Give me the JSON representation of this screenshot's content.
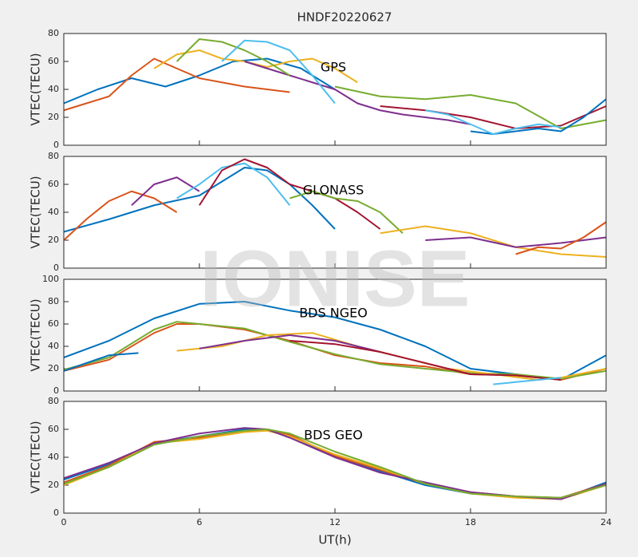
{
  "title": "HNDF20220627",
  "watermark": "IONISE",
  "xlabel": "UT(h)",
  "chart_data": [
    {
      "type": "line",
      "annotation": "GPS",
      "ylabel": "VTEC(TECU)",
      "xlim": [
        0,
        24
      ],
      "xticks": [
        0,
        6,
        12,
        18,
        24
      ],
      "xtick_labels": false,
      "ylim": [
        0,
        80
      ],
      "yticks": [
        0,
        20,
        40,
        60,
        80
      ],
      "series": [
        {
          "color": "#0072BD",
          "x": [
            0,
            1.5,
            3,
            4.5,
            6,
            7.5,
            9,
            10.5,
            12
          ],
          "values": [
            30,
            40,
            48,
            42,
            50,
            60,
            62,
            55,
            40
          ]
        },
        {
          "color": "#D95319",
          "x": [
            0,
            1,
            2,
            3,
            4,
            5,
            6,
            8,
            10
          ],
          "values": [
            25,
            30,
            35,
            50,
            62,
            55,
            48,
            42,
            38
          ]
        },
        {
          "color": "#EDB120",
          "x": [
            4,
            5,
            6,
            7,
            8,
            9,
            10,
            11,
            12,
            13
          ],
          "values": [
            55,
            65,
            68,
            62,
            60,
            56,
            60,
            62,
            55,
            45
          ]
        },
        {
          "color": "#7E2F8E",
          "x": [
            8,
            9,
            10,
            11,
            12,
            13,
            14,
            15,
            16,
            17,
            18
          ],
          "values": [
            60,
            55,
            50,
            45,
            40,
            30,
            25,
            22,
            20,
            18,
            15
          ]
        },
        {
          "color": "#77AC30",
          "x": [
            5,
            6,
            7,
            8,
            9,
            10
          ],
          "values": [
            60,
            76,
            74,
            68,
            60,
            50
          ]
        },
        {
          "color": "#4DBEEE",
          "x": [
            7,
            8,
            9,
            10,
            11,
            12
          ],
          "values": [
            60,
            75,
            74,
            68,
            50,
            30
          ]
        },
        {
          "color": "#A2142F",
          "x": [
            14,
            16,
            18,
            20,
            22,
            24
          ],
          "values": [
            28,
            25,
            20,
            12,
            14,
            28
          ]
        },
        {
          "color": "#77AC30",
          "x": [
            12,
            14,
            16,
            18,
            20,
            22,
            24
          ],
          "values": [
            42,
            35,
            33,
            36,
            30,
            12,
            18
          ]
        },
        {
          "color": "#0072BD",
          "x": [
            18,
            19,
            20,
            21,
            22,
            23,
            24
          ],
          "values": [
            10,
            8,
            10,
            12,
            10,
            20,
            33
          ]
        },
        {
          "color": "#4DBEEE",
          "x": [
            16,
            17,
            18,
            19,
            20,
            21,
            22
          ],
          "values": [
            25,
            22,
            15,
            8,
            12,
            15,
            13
          ]
        }
      ]
    },
    {
      "type": "line",
      "annotation": "GLONASS",
      "ylabel": "VTEC(TECU)",
      "xlim": [
        0,
        24
      ],
      "xticks": [
        0,
        6,
        12,
        18,
        24
      ],
      "xtick_labels": false,
      "ylim": [
        0,
        80
      ],
      "yticks": [
        0,
        20,
        40,
        60,
        80
      ],
      "series": [
        {
          "color": "#0072BD",
          "x": [
            0,
            2,
            4,
            6,
            7,
            8,
            9,
            10,
            11,
            12
          ],
          "values": [
            26,
            35,
            45,
            52,
            62,
            72,
            70,
            60,
            45,
            28
          ]
        },
        {
          "color": "#D95319",
          "x": [
            0,
            1,
            2,
            3,
            4,
            5
          ],
          "values": [
            20,
            35,
            48,
            55,
            50,
            40
          ]
        },
        {
          "color": "#7E2F8E",
          "x": [
            3,
            4,
            5,
            6
          ],
          "values": [
            45,
            60,
            65,
            55
          ]
        },
        {
          "color": "#4DBEEE",
          "x": [
            5,
            6,
            7,
            8,
            9,
            10
          ],
          "values": [
            50,
            60,
            72,
            75,
            65,
            45
          ]
        },
        {
          "color": "#A2142F",
          "x": [
            6,
            7,
            8,
            9,
            10,
            11,
            12,
            13,
            14
          ],
          "values": [
            45,
            70,
            78,
            72,
            60,
            55,
            50,
            40,
            28
          ]
        },
        {
          "color": "#77AC30",
          "x": [
            10,
            11,
            12,
            13,
            14,
            15
          ],
          "values": [
            50,
            55,
            50,
            48,
            40,
            25
          ]
        },
        {
          "color": "#EDB120",
          "x": [
            14,
            16,
            18,
            20,
            22,
            24
          ],
          "values": [
            25,
            30,
            25,
            15,
            10,
            8
          ]
        },
        {
          "color": "#7E2F8E",
          "x": [
            16,
            18,
            20,
            22,
            24
          ],
          "values": [
            20,
            22,
            15,
            18,
            22
          ]
        },
        {
          "color": "#D95319",
          "x": [
            20,
            21,
            22,
            23,
            24
          ],
          "values": [
            10,
            15,
            14,
            22,
            33
          ]
        }
      ]
    },
    {
      "type": "line",
      "annotation": "BDS NGEO",
      "ylabel": "VTEC(TECU)",
      "xlim": [
        0,
        24
      ],
      "xticks": [
        0,
        6,
        12,
        18,
        24
      ],
      "xtick_labels": false,
      "ylim": [
        0,
        100
      ],
      "yticks": [
        0,
        20,
        40,
        60,
        80,
        100
      ],
      "series": [
        {
          "color": "#0072BD",
          "x": [
            0,
            2,
            4,
            6,
            8,
            10,
            12,
            14,
            16,
            18,
            20,
            22,
            24
          ],
          "values": [
            30,
            45,
            65,
            78,
            80,
            72,
            66,
            55,
            40,
            20,
            15,
            10,
            32
          ]
        },
        {
          "color": "#D95319",
          "x": [
            0,
            2,
            4,
            5,
            6,
            8,
            10,
            12,
            14,
            16,
            18,
            20,
            22,
            24
          ],
          "values": [
            18,
            28,
            52,
            60,
            60,
            55,
            45,
            32,
            25,
            22,
            15,
            14,
            10,
            20
          ]
        },
        {
          "color": "#77AC30",
          "x": [
            0,
            2,
            4,
            5,
            6,
            8,
            10,
            12,
            14,
            16,
            18,
            20,
            22,
            24
          ],
          "values": [
            19,
            30,
            55,
            62,
            60,
            56,
            44,
            33,
            24,
            20,
            16,
            15,
            11,
            18
          ]
        },
        {
          "color": "#EDB120",
          "x": [
            5,
            7,
            9,
            11,
            13,
            15,
            17,
            19,
            21,
            22,
            24
          ],
          "values": [
            36,
            40,
            50,
            52,
            40,
            30,
            20,
            15,
            10,
            12,
            20
          ]
        },
        {
          "color": "#7E2F8E",
          "x": [
            6,
            8,
            10,
            12,
            14
          ],
          "values": [
            38,
            45,
            50,
            45,
            35
          ]
        },
        {
          "color": "#A2142F",
          "x": [
            10,
            12,
            14,
            16,
            18,
            20,
            22
          ],
          "values": [
            45,
            42,
            35,
            25,
            15,
            14,
            10
          ]
        },
        {
          "color": "#4DBEEE",
          "x": [
            19,
            20,
            21,
            22
          ],
          "values": [
            6,
            8,
            10,
            12
          ]
        },
        {
          "color": "#0072BD",
          "x": [
            0,
            1,
            2,
            3.3
          ],
          "values": [
            18,
            25,
            32,
            34
          ]
        }
      ]
    },
    {
      "type": "line",
      "annotation": "BDS GEO",
      "ylabel": "VTEC(TECU)",
      "xlim": [
        0,
        24
      ],
      "xticks": [
        0,
        6,
        12,
        18,
        24
      ],
      "xtick_labels": true,
      "ylim": [
        0,
        80
      ],
      "yticks": [
        0,
        20,
        40,
        60,
        80
      ],
      "series": [
        {
          "color": "#0072BD",
          "x": [
            0,
            2,
            4,
            6,
            8,
            9,
            10,
            12,
            14,
            16,
            18,
            20,
            22,
            24
          ],
          "values": [
            24,
            35,
            50,
            55,
            60,
            60,
            55,
            40,
            30,
            20,
            14,
            12,
            10,
            22
          ]
        },
        {
          "color": "#D95319",
          "x": [
            0,
            2,
            4,
            6,
            8,
            9,
            10,
            12,
            14,
            16,
            18,
            20,
            22,
            24
          ],
          "values": [
            22,
            34,
            51,
            54,
            59,
            60,
            56,
            41,
            31,
            21,
            15,
            12,
            11,
            21
          ]
        },
        {
          "color": "#EDB120",
          "x": [
            0,
            2,
            4,
            6,
            8,
            9,
            10,
            12,
            14,
            16,
            18,
            20,
            22,
            24
          ],
          "values": [
            20,
            33,
            50,
            53,
            58,
            59,
            55,
            42,
            32,
            21,
            14,
            11,
            10,
            20
          ]
        },
        {
          "color": "#7E2F8E",
          "x": [
            0,
            2,
            4,
            6,
            8,
            9,
            10,
            12,
            14,
            16,
            18,
            20,
            22,
            24
          ],
          "values": [
            25,
            36,
            50,
            57,
            61,
            60,
            54,
            40,
            29,
            22,
            15,
            12,
            10,
            21
          ]
        },
        {
          "color": "#77AC30",
          "x": [
            0,
            2,
            4,
            6,
            8,
            9,
            10,
            12,
            14,
            16,
            18,
            20,
            22,
            24
          ],
          "values": [
            21,
            33,
            49,
            55,
            59,
            60,
            57,
            44,
            33,
            21,
            14,
            12,
            11,
            20
          ]
        }
      ]
    }
  ]
}
